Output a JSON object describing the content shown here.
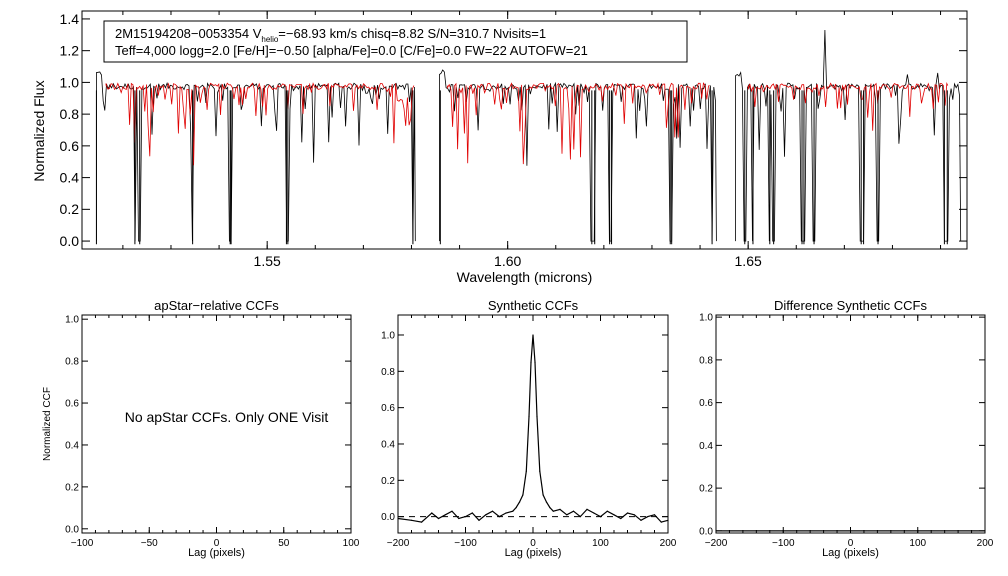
{
  "chart_data": [
    {
      "type": "line",
      "header": {
        "line1": {
          "object": "2M15194208−0053354",
          "v_prefix": "V",
          "v_sub": "helio",
          "v_value": "=−68.93 km/s",
          "rest": "chisq=8.82  S/N=310.7  Nvisits=1"
        },
        "line2": "Teff=4,000 logg=2.0 [Fe/H]=−0.50 [alpha/Fe]=0.0 [C/Fe]=0.0 FW=22 AUTOFW=21"
      },
      "xlabel": "Wavelength (microns)",
      "ylabel": "Normalized Flux",
      "xlim": [
        1.5115,
        1.6955
      ],
      "ylim": [
        -0.05,
        1.45
      ],
      "xticks": [
        1.55,
        1.6,
        1.65
      ],
      "xtick_labels": [
        "1.55",
        "1.60",
        "1.65"
      ],
      "yticks": [
        0.0,
        0.2,
        0.4,
        0.6,
        0.8,
        1.0,
        1.2,
        1.4
      ],
      "ytick_labels": [
        "0.0",
        "0.2",
        "0.4",
        "0.6",
        "0.8",
        "1.0",
        "1.2",
        "1.4"
      ],
      "chips": [
        [
          1.5145,
          1.5808
        ],
        [
          1.5858,
          1.6434
        ],
        [
          1.6474,
          1.6942
        ]
      ],
      "model_chips": [
        [
          1.5165,
          1.5805
        ],
        [
          1.5875,
          1.642
        ],
        [
          1.65,
          1.6915
        ]
      ],
      "dropouts": [
        1.5145,
        1.5225,
        1.5235,
        1.5345,
        1.5423,
        1.5425,
        1.554,
        1.5543,
        1.5803,
        1.586,
        1.6175,
        1.6181,
        1.6212,
        1.6216,
        1.6338,
        1.6341,
        1.6425,
        1.6493,
        1.651,
        1.6545,
        1.6553,
        1.6612,
        1.6616,
        1.6637,
        1.6735,
        1.674,
        1.677,
        1.6908,
        1.6914
      ],
      "spikes": [
        [
          1.666,
          1.33
        ],
        [
          1.683,
          1.05
        ],
        [
          1.6895,
          1.06
        ],
        [
          1.585,
          1.0
        ]
      ],
      "series": [
        {
          "color": "#000000",
          "role": "observed"
        },
        {
          "color": "#e00000",
          "role": "model"
        }
      ]
    },
    {
      "type": "line",
      "title": "apStar−relative CCFs",
      "xlabel": "Lag (pixels)",
      "ylabel": "Normalized CCF",
      "xlim": [
        -100,
        100
      ],
      "ylim": [
        -0.02,
        1.02
      ],
      "xticks": [
        -100,
        -50,
        0,
        50,
        100
      ],
      "xtick_labels": [
        "−100",
        "−50",
        "0",
        "50",
        "100"
      ],
      "yticks": [
        0.0,
        0.2,
        0.4,
        0.6,
        0.8,
        1.0
      ],
      "ytick_labels": [
        "0.0",
        "0.2",
        "0.4",
        "0.6",
        "0.8",
        "1.0"
      ],
      "message": "No apStar CCFs.  Only ONE Visit"
    },
    {
      "type": "line",
      "title": "Synthetic CCFs",
      "xlabel": "Lag (pixels)",
      "xlim": [
        -200,
        200
      ],
      "ylim": [
        -0.09,
        1.11
      ],
      "xticks": [
        -200,
        -100,
        0,
        100,
        200
      ],
      "xtick_labels": [
        "−200",
        "−100",
        "0",
        "100",
        "200"
      ],
      "yticks": [
        0.0,
        0.2,
        0.4,
        0.6,
        0.8,
        1.0
      ],
      "ytick_labels": [
        "0.0",
        "0.2",
        "0.4",
        "0.6",
        "0.8",
        "1.0"
      ],
      "peak": {
        "lag": 0,
        "value": 1.0
      },
      "baseline": 0.0,
      "series": [
        {
          "x": [
            -200,
            -180,
            -165,
            -150,
            -140,
            -130,
            -120,
            -110,
            -100,
            -90,
            -80,
            -70,
            -60,
            -50,
            -40,
            -30,
            -25,
            -20,
            -15,
            -10,
            -6,
            -3,
            0,
            3,
            6,
            10,
            15,
            20,
            25,
            30,
            40,
            50,
            60,
            70,
            80,
            90,
            100,
            110,
            120,
            130,
            140,
            150,
            160,
            170,
            180,
            190,
            200
          ],
          "y": [
            -0.01,
            -0.02,
            -0.03,
            0.02,
            -0.01,
            0.01,
            0.03,
            -0.01,
            0.0,
            0.02,
            -0.02,
            0.01,
            0.03,
            0.0,
            0.02,
            0.03,
            0.05,
            0.08,
            0.12,
            0.25,
            0.55,
            0.85,
            1.0,
            0.85,
            0.55,
            0.25,
            0.12,
            0.08,
            0.05,
            0.03,
            0.04,
            0.01,
            0.03,
            0.0,
            0.04,
            0.02,
            0.0,
            0.03,
            0.01,
            -0.01,
            0.02,
            0.01,
            -0.02,
            0.0,
            0.01,
            -0.03,
            -0.02
          ]
        }
      ]
    },
    {
      "type": "line",
      "title": "Difference Synthetic CCFs",
      "xlabel": "Lag (pixels)",
      "xlim": [
        -200,
        200
      ],
      "ylim": [
        -0.01,
        1.01
      ],
      "xticks": [
        -200,
        -100,
        0,
        100,
        200
      ],
      "xtick_labels": [
        "−200",
        "−100",
        "0",
        "100",
        "200"
      ],
      "yticks": [
        0.0,
        0.2,
        0.4,
        0.6,
        0.8,
        1.0
      ],
      "ytick_labels": [
        "0.0",
        "0.2",
        "0.4",
        "0.6",
        "0.8",
        "1.0"
      ],
      "series": [
        {
          "x": [
            -200,
            200
          ],
          "y": [
            0.0,
            0.0
          ]
        }
      ]
    }
  ]
}
